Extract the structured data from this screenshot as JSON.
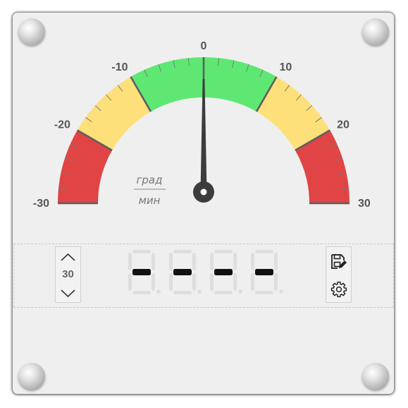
{
  "gauge": {
    "min": -30,
    "max": 30,
    "value": 0,
    "tick_labels": [
      "-30",
      "-20",
      "-10",
      "0",
      "10",
      "20",
      "30"
    ],
    "unit_numerator": "град",
    "unit_denominator": "мин",
    "zones": [
      {
        "from": -30,
        "to": -20,
        "color": "#e04444"
      },
      {
        "from": -20,
        "to": -10,
        "color": "#fde07a"
      },
      {
        "from": -10,
        "to": 10,
        "color": "#5ee873"
      },
      {
        "from": 10,
        "to": 20,
        "color": "#fde07a"
      },
      {
        "from": 20,
        "to": 30,
        "color": "#e04444"
      }
    ]
  },
  "stepper": {
    "value": "30",
    "up_icon": "chevron-up-icon",
    "down_icon": "chevron-down-icon"
  },
  "digital_display": {
    "digits": [
      "-",
      "-",
      "-",
      "-"
    ],
    "active_color": "#111111",
    "inactive_color": "#dedede"
  },
  "tools": {
    "save_icon": "save-edit-icon",
    "settings_icon": "gear-icon"
  }
}
